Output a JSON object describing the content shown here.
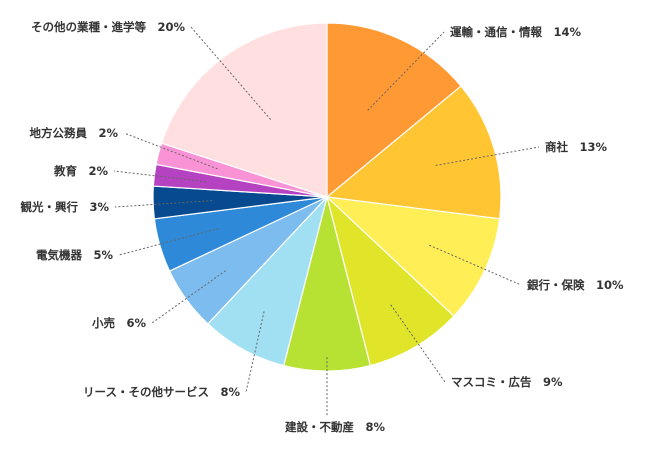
{
  "chart_data": {
    "type": "pie",
    "title": "",
    "legend": "none",
    "start": "12 o'clock, clockwise",
    "slices": [
      {
        "category": "運輸・通信・情報",
        "value": 14,
        "label": "運輸・通信・情報　14%",
        "color": "#ff9933"
      },
      {
        "category": "商社",
        "value": 13,
        "label": "商社　13%",
        "color": "#ffc533"
      },
      {
        "category": "銀行・保険",
        "value": 10,
        "label": "銀行・保険　10%",
        "color": "#ffee55"
      },
      {
        "category": "マスコミ・広告",
        "value": 9,
        "label": "マスコミ・広告　9%",
        "color": "#e0e52a"
      },
      {
        "category": "建設・不動産",
        "value": 8,
        "label": "建設・不動産　8%",
        "color": "#b7e233"
      },
      {
        "category": "リース・その他サービス",
        "value": 8,
        "label": "リース・その他サービス　8%",
        "color": "#a0e0f2"
      },
      {
        "category": "小売",
        "value": 6,
        "label": "小売　6%",
        "color": "#7dbcee"
      },
      {
        "category": "電気機器",
        "value": 5,
        "label": "電気機器　5%",
        "color": "#2e8ad8"
      },
      {
        "category": "観光・興行",
        "value": 3,
        "label": "観光・興行　3%",
        "color": "#074a90"
      },
      {
        "category": "教育",
        "value": 2,
        "label": "教育　2%",
        "color": "#b542c0"
      },
      {
        "category": "地方公務員",
        "value": 2,
        "label": "地方公務員　2%",
        "color": "#f993d6"
      },
      {
        "category": "その他の業種・進学等",
        "value": 20,
        "label": "その他の業種・進学等　20%",
        "color": "#ffdfe0"
      }
    ]
  }
}
